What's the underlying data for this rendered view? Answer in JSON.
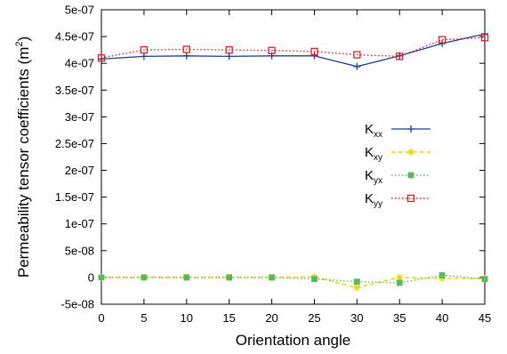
{
  "chart_data": {
    "type": "line",
    "xlabel": "Orientation angle",
    "ylabel": {
      "text": "Permeability tensor coefficients (m",
      "sup": "2",
      "close": ")"
    },
    "x": [
      0,
      5,
      10,
      15,
      20,
      25,
      30,
      35,
      40,
      45
    ],
    "xlim": [
      0,
      45
    ],
    "ylim": [
      -5e-08,
      5e-07
    ],
    "x_ticks": [
      "0",
      "5",
      "10",
      "15",
      "20",
      "25",
      "30",
      "35",
      "40",
      "45"
    ],
    "x_tick_values": [
      0,
      5,
      10,
      15,
      20,
      25,
      30,
      35,
      40,
      45
    ],
    "y_ticks": [
      "-5e-08",
      "0",
      "5e-08",
      "1e-07",
      "1.5e-07",
      "2e-07",
      "2.5e-07",
      "3e-07",
      "3.5e-07",
      "4e-07",
      "4.5e-07",
      "5e-07"
    ],
    "y_tick_values": [
      -5e-08,
      0,
      5e-08,
      1e-07,
      1.5e-07,
      2e-07,
      2.5e-07,
      3e-07,
      3.5e-07,
      4e-07,
      4.5e-07,
      5e-07
    ],
    "grid": false,
    "legend_position": "right",
    "series": [
      {
        "name": "K",
        "sub": "xx",
        "color": "#1f3f99",
        "style": "solid",
        "marker": "plus",
        "values": [
          4.08e-07,
          4.13e-07,
          4.14e-07,
          4.13e-07,
          4.14e-07,
          4.14e-07,
          3.94e-07,
          4.14e-07,
          4.37e-07,
          4.55e-07
        ]
      },
      {
        "name": "K",
        "sub": "xy",
        "color": "#e6d800",
        "style": "dashed",
        "marker": "star",
        "values": [
          0,
          0,
          0,
          0,
          0,
          1e-09,
          -1.9e-08,
          0,
          -2e-09,
          -2e-09
        ]
      },
      {
        "name": "K",
        "sub": "yx",
        "color": "#5cb85c",
        "style": "dotted",
        "marker": "square-filled",
        "values": [
          0,
          0,
          0,
          0,
          0,
          -3e-09,
          -8e-09,
          -1e-08,
          4e-09,
          -3e-09
        ]
      },
      {
        "name": "K",
        "sub": "yy",
        "color": "#e02020",
        "style": "dotted",
        "marker": "square-open",
        "values": [
          4.1e-07,
          4.25e-07,
          4.26e-07,
          4.25e-07,
          4.24e-07,
          4.22e-07,
          4.16e-07,
          4.13e-07,
          4.44e-07,
          4.48e-07
        ]
      }
    ]
  }
}
